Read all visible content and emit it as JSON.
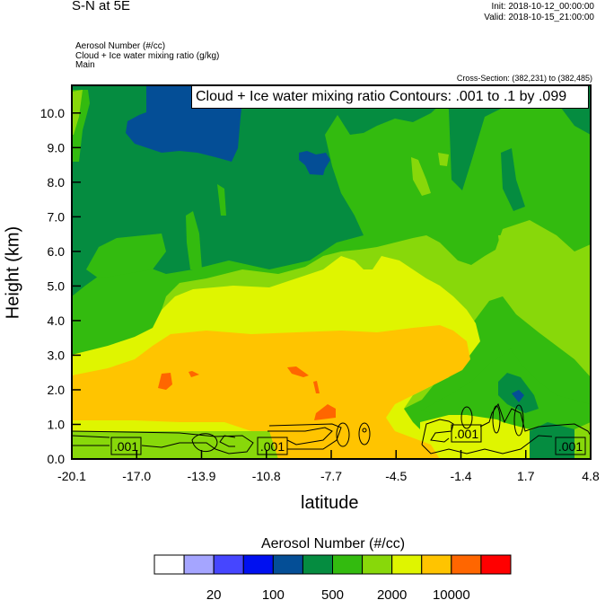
{
  "header": {
    "title": "S-N at 5E",
    "init": "Init: 2018-10-12_00:00:00",
    "valid": "Valid: 2018-10-15_21:00:00",
    "fields": [
      "Aerosol Number   (#/cc)",
      "Cloud + Ice water mixing ratio   (g/kg)",
      "Main"
    ],
    "cross_section": "Cross-Section: (382,231) to (382,485)"
  },
  "chart_data": {
    "type": "heatmap",
    "subtype": "filled contour cross-section with line contour overlay",
    "xlabel": "latitude",
    "ylabel": "Height (km)",
    "x_ticks": [
      "-20.1",
      "-17.0",
      "-13.9",
      "-10.8",
      "-7.7",
      "-4.5",
      "-1.4",
      "1.7",
      "4.8"
    ],
    "y_ticks": [
      "0.0",
      "1.0",
      "2.0",
      "3.0",
      "4.0",
      "5.0",
      "6.0",
      "7.0",
      "8.0",
      "9.0",
      "10.0"
    ],
    "xlim": [
      -20.1,
      4.8
    ],
    "ylim": [
      0,
      10.8
    ],
    "contour_title": "Cloud + Ice water mixing ratio Contours: .001 to .1 by .099",
    "contour_labels": [
      ".001",
      ".001",
      ".001",
      ".001"
    ],
    "colorbar": {
      "title": "Aerosol Number  (#/cc)",
      "colors": [
        "#ffffff",
        "#a5a5ff",
        "#4646ff",
        "#0010f0",
        "#044e96",
        "#058c40",
        "#33bb0f",
        "#88d80a",
        "#dff500",
        "#ffc400",
        "#ff6600",
        "#ff0000"
      ],
      "labels": [
        "20",
        "100",
        "500",
        "2000",
        "10000"
      ]
    }
  }
}
